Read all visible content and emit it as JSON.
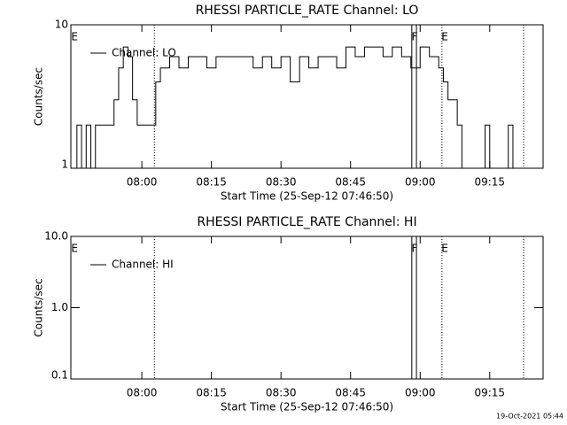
{
  "chart_data": [
    {
      "type": "line",
      "title": "RHESSI PARTICLE_RATE Channel: LO",
      "xlabel": "Start Time (25-Sep-12 07:46:50)",
      "ylabel": "Counts/sec",
      "log_y": true,
      "xlim": [
        464.7,
        566.5
      ],
      "ylim": [
        1,
        10
      ],
      "xticks": [
        {
          "value": 480,
          "label": "08:00"
        },
        {
          "value": 495,
          "label": "08:15"
        },
        {
          "value": 510,
          "label": "08:30"
        },
        {
          "value": 525,
          "label": "08:45"
        },
        {
          "value": 540,
          "label": "09:00"
        },
        {
          "value": 555,
          "label": "09:15"
        }
      ],
      "yticks": [
        1,
        10
      ],
      "series": [
        {
          "name": "Channel: LO",
          "color": "#000000",
          "x": [
            465,
            466,
            467,
            468,
            469,
            470,
            472,
            474,
            475,
            476,
            477,
            478,
            479,
            480,
            482,
            483,
            484,
            486,
            488,
            490,
            492,
            494,
            496,
            498,
            500,
            502,
            504,
            506,
            508,
            510,
            512,
            514,
            516,
            518,
            520,
            522,
            524,
            526,
            528,
            530,
            532,
            534,
            536,
            538,
            540,
            542,
            544,
            545,
            546,
            547,
            548,
            549,
            553,
            554,
            555,
            559,
            560,
            563
          ],
          "values": [
            1,
            2,
            1,
            2,
            1,
            2,
            2,
            3,
            5,
            7,
            6,
            3,
            2,
            2,
            2,
            4,
            5,
            6,
            5,
            6,
            6,
            5,
            6,
            6,
            6,
            6,
            5,
            6,
            5,
            6,
            4,
            6,
            5,
            6,
            6,
            5,
            7,
            6,
            7,
            7,
            6,
            7,
            6,
            5,
            7,
            6,
            5,
            4,
            3,
            3,
            2,
            1,
            1,
            2,
            1,
            2,
            1,
            1
          ]
        }
      ],
      "vlines": [
        {
          "x": 482.7,
          "style": "dotted"
        },
        {
          "x": 538.2,
          "style": "solid"
        },
        {
          "x": 539.2,
          "style": "solid"
        },
        {
          "x": 544.7,
          "style": "dotted"
        },
        {
          "x": 562.3,
          "style": "dotted"
        }
      ],
      "annotations": [
        {
          "text": "E",
          "x": 465.5
        },
        {
          "text": "F",
          "x": 538.8
        },
        {
          "text": "E",
          "x": 545.3
        }
      ]
    },
    {
      "type": "line",
      "title": "RHESSI PARTICLE_RATE Channel: HI",
      "xlabel": "Start Time (25-Sep-12 07:46:50)",
      "ylabel": "Counts/sec",
      "log_y": true,
      "xlim": [
        464.7,
        566.5
      ],
      "ylim": [
        0.1,
        10
      ],
      "xticks": [
        {
          "value": 480,
          "label": "08:00"
        },
        {
          "value": 495,
          "label": "08:15"
        },
        {
          "value": 510,
          "label": "08:30"
        },
        {
          "value": 525,
          "label": "08:45"
        },
        {
          "value": 540,
          "label": "09:00"
        },
        {
          "value": 555,
          "label": "09:15"
        }
      ],
      "yticks": [
        {
          "value": 0.1,
          "label": "0.1"
        },
        {
          "value": 1,
          "label": "1.0"
        },
        {
          "value": 10,
          "label": "10.0"
        }
      ],
      "series": [
        {
          "name": "Channel: HI",
          "color": "#000000",
          "x": [],
          "values": []
        }
      ],
      "vlines": [
        {
          "x": 482.7,
          "style": "dotted"
        },
        {
          "x": 538.2,
          "style": "solid"
        },
        {
          "x": 539.2,
          "style": "solid"
        },
        {
          "x": 544.7,
          "style": "dotted"
        },
        {
          "x": 562.3,
          "style": "dotted"
        }
      ],
      "annotations": [
        {
          "text": "E",
          "x": 465.5
        },
        {
          "text": "F",
          "x": 538.8
        },
        {
          "text": "E",
          "x": 545.3
        }
      ]
    }
  ],
  "footer": "19-Oct-2021 05:44"
}
